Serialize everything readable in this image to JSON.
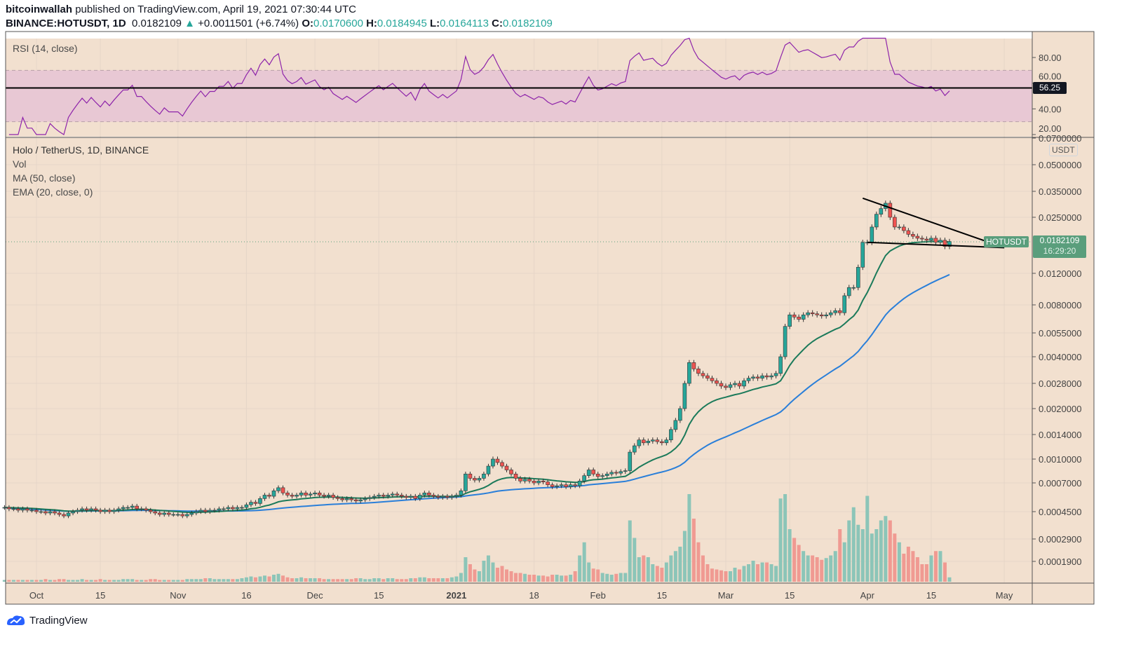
{
  "header": {
    "author": "bitcoinwallah",
    "published": "published on TradingView.com, April 19, 2021 07:30:44 UTC",
    "symbol": "BINANCE:HOTUSDT, 1D",
    "last": "0.0182109",
    "arrow": "▲",
    "change": "+0.0011501 (+6.74%)",
    "o_label": "O:",
    "o": "0.0170600",
    "h_label": "H:",
    "h": "0.0184945",
    "l_label": "L:",
    "l": "0.0164113",
    "c_label": "C:",
    "c": "0.0182109"
  },
  "rsi_pane": {
    "title": "RSI (14, close)",
    "value_label": "56.25",
    "ticks": [
      "80.00",
      "60.00",
      "40.00",
      "20.00"
    ],
    "band": [
      30,
      70
    ]
  },
  "price_pane": {
    "legend": [
      "Holo / TetherUS, 1D, BINANCE",
      "Vol",
      "MA (50, close)",
      "EMA (20, close, 0)"
    ],
    "currency": "USDT",
    "symbol_tag": "HOTUSDT",
    "price_tag": "0.0182109",
    "countdown": "16:29:20"
  },
  "footer": {
    "brand": "TradingView"
  },
  "colors": {
    "bg": "#f2e0cf",
    "up": "#26a69a",
    "down": "#ef5350",
    "ema": "#1b7a5a",
    "ma": "#2a7fd9",
    "rsi": "#8e24aa",
    "rsi_band": "#e8c8d4"
  },
  "chart_data": {
    "type": "candlestick",
    "start_date": "2020-09-24",
    "end_date": "2021-04-19",
    "interval": "1D",
    "y_scale": "log",
    "x_ticks": [
      "Oct",
      "15",
      "Nov",
      "16",
      "Dec",
      "15",
      "2021",
      "18",
      "Feb",
      "15",
      "Mar",
      "15",
      "Apr",
      "15",
      "May"
    ],
    "y_ticks": [
      "0.0700000",
      "0.0500000",
      "0.0350000",
      "0.0250000",
      "0.0120000",
      "0.0080000",
      "0.0055000",
      "0.0040000",
      "0.0028000",
      "0.0020000",
      "0.0014000",
      "0.0010000",
      "0.0007000",
      "0.0004500",
      "0.0002900",
      "0.0001900"
    ],
    "close": [
      0.00048,
      0.00047,
      0.00047,
      0.00046,
      0.00047,
      0.00046,
      0.00046,
      0.00045,
      0.00045,
      0.00044,
      0.00045,
      0.00044,
      0.00043,
      0.00042,
      0.00044,
      0.00045,
      0.00046,
      0.00047,
      0.00046,
      0.00047,
      0.00046,
      0.00045,
      0.00046,
      0.00045,
      0.00046,
      0.00047,
      0.00048,
      0.00048,
      0.00049,
      0.00047,
      0.00047,
      0.00046,
      0.00045,
      0.00044,
      0.00043,
      0.00044,
      0.00043,
      0.00043,
      0.00043,
      0.00042,
      0.00043,
      0.00044,
      0.00045,
      0.00046,
      0.00045,
      0.00046,
      0.00046,
      0.00047,
      0.00047,
      0.00048,
      0.00047,
      0.00048,
      0.00048,
      0.0005,
      0.00052,
      0.00051,
      0.00055,
      0.00058,
      0.00057,
      0.00062,
      0.00065,
      0.0006,
      0.00058,
      0.00057,
      0.00058,
      0.0006,
      0.00058,
      0.00059,
      0.0006,
      0.00058,
      0.00057,
      0.00058,
      0.00056,
      0.00055,
      0.00054,
      0.00055,
      0.00054,
      0.00053,
      0.00054,
      0.00055,
      0.00056,
      0.00057,
      0.00058,
      0.00057,
      0.00058,
      0.00059,
      0.00058,
      0.00057,
      0.00056,
      0.00057,
      0.00055,
      0.00058,
      0.0006,
      0.00058,
      0.00057,
      0.00056,
      0.00057,
      0.00056,
      0.00057,
      0.00058,
      0.00062,
      0.0008,
      0.00075,
      0.00073,
      0.00075,
      0.0008,
      0.0009,
      0.001,
      0.00095,
      0.0009,
      0.00085,
      0.0008,
      0.00075,
      0.00072,
      0.00074,
      0.00072,
      0.0007,
      0.00072,
      0.00071,
      0.00068,
      0.00066,
      0.00067,
      0.00068,
      0.00066,
      0.00068,
      0.00067,
      0.00072,
      0.00078,
      0.00085,
      0.0008,
      0.00077,
      0.00078,
      0.0008,
      0.00082,
      0.00081,
      0.00083,
      0.00084,
      0.0011,
      0.0012,
      0.0013,
      0.00125,
      0.00128,
      0.0013,
      0.00127,
      0.00125,
      0.0013,
      0.0015,
      0.0017,
      0.002,
      0.0028,
      0.0037,
      0.0034,
      0.0032,
      0.0031,
      0.003,
      0.0029,
      0.0028,
      0.0027,
      0.00265,
      0.00275,
      0.0028,
      0.0027,
      0.0029,
      0.003,
      0.00305,
      0.003,
      0.0031,
      0.00305,
      0.0031,
      0.0032,
      0.004,
      0.006,
      0.007,
      0.0068,
      0.0066,
      0.007,
      0.0072,
      0.0071,
      0.007,
      0.0069,
      0.007,
      0.0072,
      0.0074,
      0.0072,
      0.009,
      0.01,
      0.01,
      0.013,
      0.018,
      0.018,
      0.022,
      0.026,
      0.028,
      0.03,
      0.025,
      0.022,
      0.022,
      0.021,
      0.02,
      0.0195,
      0.019,
      0.0188,
      0.0185,
      0.019,
      0.018,
      0.0185,
      0.01706,
      0.0182109
    ],
    "volume_relative": [
      2,
      2,
      2,
      2,
      2,
      2,
      2,
      2,
      2,
      3,
      2,
      2,
      3,
      3,
      2,
      2,
      2,
      3,
      2,
      2,
      2,
      3,
      2,
      2,
      2,
      2,
      3,
      3,
      3,
      2,
      2,
      2,
      3,
      3,
      2,
      2,
      2,
      2,
      2,
      2,
      3,
      3,
      3,
      3,
      4,
      4,
      3,
      3,
      3,
      3,
      3,
      3,
      4,
      5,
      6,
      5,
      6,
      7,
      6,
      8,
      9,
      7,
      5,
      4,
      4,
      5,
      4,
      4,
      4,
      4,
      3,
      3,
      3,
      3,
      3,
      3,
      3,
      4,
      4,
      3,
      3,
      4,
      4,
      3,
      4,
      4,
      3,
      3,
      3,
      4,
      4,
      5,
      5,
      4,
      4,
      4,
      4,
      4,
      5,
      6,
      10,
      28,
      20,
      14,
      12,
      24,
      30,
      22,
      16,
      18,
      14,
      12,
      10,
      10,
      9,
      8,
      8,
      7,
      7,
      6,
      8,
      8,
      7,
      7,
      8,
      12,
      30,
      45,
      22,
      15,
      14,
      10,
      9,
      8,
      9,
      10,
      10,
      70,
      50,
      28,
      30,
      28,
      20,
      18,
      16,
      22,
      30,
      35,
      40,
      58,
      100,
      72,
      45,
      30,
      20,
      15,
      14,
      13,
      12,
      12,
      16,
      14,
      18,
      20,
      24,
      20,
      22,
      22,
      20,
      18,
      95,
      100,
      60,
      50,
      42,
      35,
      30,
      30,
      28,
      25,
      27,
      30,
      35,
      60,
      45,
      70,
      85,
      65,
      60,
      98,
      55,
      60,
      70,
      75,
      70,
      55,
      45,
      32,
      40,
      35,
      28,
      20,
      20,
      30,
      35,
      35,
      22,
      5
    ],
    "indicators": [
      "MA (50, close)",
      "EMA (20, close, 0)",
      "RSI (14, close)"
    ],
    "trendlines": [
      {
        "name": "upper",
        "from": [
          "2021-03-31",
          0.032
        ],
        "to": [
          "2021-05-01",
          0.0168
        ]
      },
      {
        "name": "lower",
        "from": [
          "2021-04-01",
          0.018
        ],
        "to": [
          "2021-05-01",
          0.0168
        ]
      }
    ],
    "rsi_level": 56.25
  }
}
